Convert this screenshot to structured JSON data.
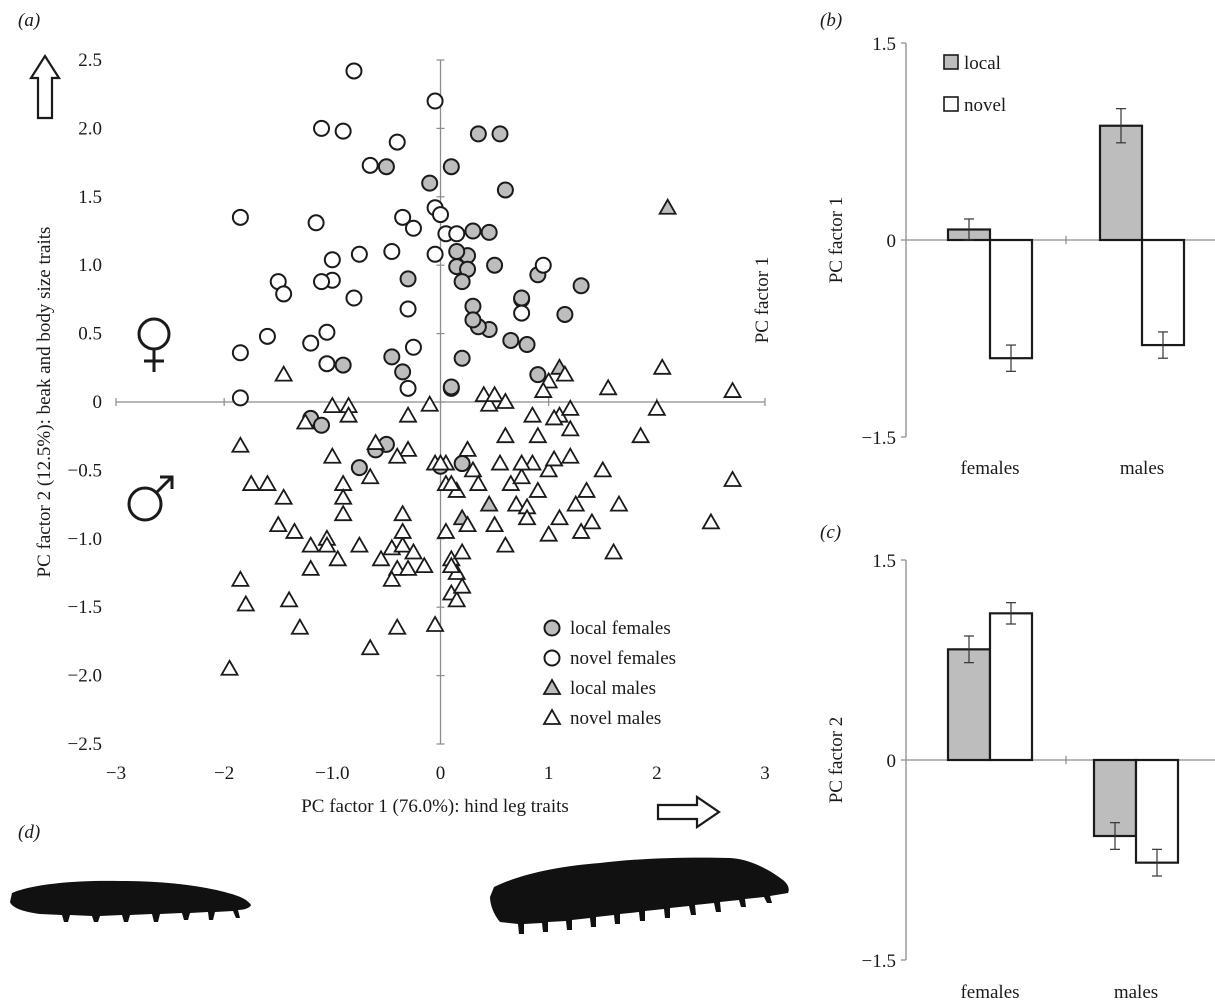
{
  "panels": {
    "a": "(a)",
    "b": "(b)",
    "c": "(c)",
    "d": "(d)"
  },
  "chart_data": [
    {
      "type": "scatter",
      "panel": "(a)",
      "xlabel": "PC factor 1 (76.0%): hind leg traits",
      "ylabel": "PC factor 2 (12.5%): beak and body size traits",
      "xlim": [
        -3,
        3
      ],
      "ylim": [
        -2.5,
        2.5
      ],
      "x_ticks": [
        "−3",
        "−2",
        "−1.0",
        "0",
        "1",
        "2",
        "3"
      ],
      "y_ticks": [
        "2.5",
        "2.0",
        "1.5",
        "1.0",
        "0.5",
        "0",
        "−0.5",
        "−1.0",
        "−1.5",
        "−2.0",
        "−2.5"
      ],
      "grid": false,
      "legend_position": "bottom-right",
      "series": [
        {
          "name": "local females",
          "marker": "circle",
          "color": "#bdbdbd",
          "x": [
            -1.2,
            -1.1,
            -0.6,
            -0.75,
            -0.9,
            -0.5,
            -0.45,
            -0.35,
            -0.3,
            -0.1,
            0.1,
            -0.5,
            0.35,
            0.55,
            0.6,
            0.25,
            0.5,
            0.15,
            0.45,
            0.75,
            0.65,
            0.9,
            1.15,
            0.2,
            0.1,
            0.0,
            0.2,
            0.3,
            0.3,
            0.45,
            0.25,
            0.35,
            0.8,
            0.75,
            0.2,
            0.15,
            0.3,
            0.9,
            1.3,
            0.1
          ],
          "y": [
            -0.12,
            -0.17,
            -0.35,
            -0.48,
            0.27,
            -0.31,
            0.33,
            0.22,
            0.9,
            1.6,
            1.72,
            1.72,
            1.96,
            1.96,
            1.55,
            1.07,
            1.0,
            0.99,
            0.53,
            0.75,
            0.45,
            0.93,
            0.64,
            0.32,
            0.1,
            -0.47,
            -0.45,
            0.7,
            1.25,
            1.24,
            0.97,
            0.55,
            0.42,
            0.76,
            0.88,
            1.1,
            0.6,
            0.2,
            0.85,
            0.11
          ]
        },
        {
          "name": "novel females",
          "marker": "circle",
          "color": "#ffffff",
          "x": [
            -0.8,
            -0.05,
            -1.1,
            -0.9,
            -0.65,
            -0.4,
            -1.85,
            -1.0,
            -0.75,
            -0.35,
            -0.25,
            -1.15,
            -1.0,
            -0.3,
            -0.05,
            0.0,
            -1.5,
            -1.45,
            -1.1,
            -0.8,
            -1.05,
            -1.6,
            -1.2,
            -1.85,
            -1.85,
            -0.3,
            -1.05,
            -0.25,
            -0.05,
            0.05,
            0.15,
            0.75,
            -0.45,
            0.95
          ],
          "y": [
            2.42,
            2.2,
            2.0,
            1.98,
            1.73,
            1.9,
            1.35,
            1.04,
            1.08,
            1.35,
            1.27,
            1.31,
            0.89,
            0.68,
            1.42,
            1.37,
            0.88,
            0.79,
            0.88,
            0.76,
            0.51,
            0.48,
            0.43,
            0.36,
            0.03,
            0.1,
            0.28,
            0.4,
            1.08,
            1.23,
            1.23,
            0.65,
            1.1,
            1.0
          ]
        },
        {
          "name": "local males",
          "marker": "triangle",
          "color": "#bdbdbd",
          "x": [
            2.1,
            0.2,
            0.45,
            1.1
          ],
          "y": [
            1.42,
            -0.85,
            -0.75,
            0.25
          ]
        },
        {
          "name": "novel males",
          "marker": "triangle",
          "color": "#ffffff",
          "x": [
            -1.85,
            -1.95,
            -1.8,
            -1.85,
            -1.6,
            -1.5,
            -1.4,
            -1.3,
            -1.2,
            -1.25,
            -1.05,
            -1.0,
            -1.0,
            -0.9,
            -0.9,
            -0.9,
            -0.85,
            -0.85,
            -0.75,
            -0.65,
            -0.55,
            -0.45,
            -0.4,
            -0.4,
            -0.35,
            -0.35,
            -0.3,
            -0.3,
            -0.3,
            -0.25,
            -0.15,
            -0.1,
            -0.05,
            -0.05,
            0.05,
            0.05,
            0.05,
            0.1,
            0.1,
            0.15,
            0.15,
            0.15,
            0.2,
            0.2,
            0.25,
            0.25,
            0.3,
            0.35,
            0.4,
            0.45,
            0.5,
            0.55,
            0.6,
            0.6,
            0.65,
            0.7,
            0.75,
            0.8,
            0.8,
            0.85,
            0.9,
            0.9,
            1.0,
            1.0,
            1.0,
            1.05,
            1.1,
            1.1,
            1.2,
            1.2,
            1.25,
            1.35,
            1.4,
            1.5,
            1.55,
            1.6,
            1.65,
            1.85,
            2.0,
            2.05,
            2.5,
            2.7,
            2.7,
            -1.45,
            -1.35,
            -1.2,
            -1.05,
            -0.95,
            -0.65,
            -0.45,
            -0.4,
            -0.6,
            0.0,
            0.1,
            0.1,
            0.5,
            0.6,
            0.75,
            0.85,
            0.95,
            1.05,
            1.15,
            1.2,
            1.3,
            -1.45,
            -1.75,
            -0.35
          ],
          "y": [
            -1.3,
            -1.95,
            -1.48,
            -0.32,
            -0.6,
            -0.9,
            -1.45,
            -1.65,
            -1.22,
            -0.15,
            -1.0,
            -0.03,
            -0.4,
            -0.6,
            -0.7,
            -0.82,
            -0.03,
            -0.1,
            -1.05,
            -1.8,
            -1.15,
            -1.07,
            -1.22,
            -1.65,
            -0.82,
            -1.05,
            -1.22,
            -0.35,
            -0.1,
            -1.1,
            -1.2,
            -0.02,
            -0.45,
            -1.63,
            -0.6,
            -0.45,
            -0.95,
            -1.15,
            -1.4,
            -0.65,
            -1.25,
            -1.45,
            -1.1,
            -1.35,
            -0.35,
            -0.9,
            -0.5,
            -0.6,
            0.05,
            -0.02,
            -0.9,
            -0.45,
            -0.25,
            -1.05,
            -0.6,
            -0.75,
            -0.55,
            -0.77,
            -0.85,
            -0.45,
            -0.25,
            -0.65,
            0.15,
            -0.5,
            -0.97,
            -0.42,
            -0.85,
            -0.1,
            -0.05,
            -0.4,
            -0.75,
            -0.65,
            -0.88,
            -0.5,
            0.1,
            -1.1,
            -0.75,
            -0.25,
            -0.05,
            0.25,
            -0.88,
            0.08,
            -0.57,
            0.2,
            -0.95,
            -1.05,
            -1.05,
            -1.15,
            -0.55,
            -1.3,
            -0.4,
            -0.3,
            -0.45,
            -0.6,
            -1.2,
            0.05,
            0.0,
            -0.45,
            -0.1,
            0.08,
            -0.12,
            0.2,
            -0.2,
            -0.95,
            -0.7,
            -0.6,
            -0.95
          ]
        }
      ]
    },
    {
      "type": "bar",
      "panel": "(b)",
      "categories": [
        "females",
        "males"
      ],
      "ylabel": "PC factor 1",
      "ylim": [
        -1.5,
        1.5
      ],
      "y_ticks": [
        "1.5",
        "0",
        "−1.5"
      ],
      "legend_position": "top-left",
      "series": [
        {
          "name": "local",
          "color": "#bdbdbd",
          "values": [
            0.08,
            0.87
          ],
          "errors": [
            0.08,
            0.13
          ]
        },
        {
          "name": "novel",
          "color": "#ffffff",
          "values": [
            -0.9,
            -0.8
          ],
          "errors": [
            0.1,
            0.1
          ]
        }
      ]
    },
    {
      "type": "bar",
      "panel": "(c)",
      "categories": [
        "females",
        "males"
      ],
      "ylabel": "PC factor 2",
      "ylim": [
        -1.5,
        1.5
      ],
      "y_ticks": [
        "1.5",
        "0",
        "−1.5"
      ],
      "series": [
        {
          "name": "local",
          "color": "#bdbdbd",
          "values": [
            0.83,
            -0.57
          ],
          "errors": [
            0.1,
            0.1
          ]
        },
        {
          "name": "novel",
          "color": "#ffffff",
          "values": [
            1.1,
            -0.77
          ],
          "errors": [
            0.08,
            0.1
          ]
        }
      ]
    }
  ]
}
